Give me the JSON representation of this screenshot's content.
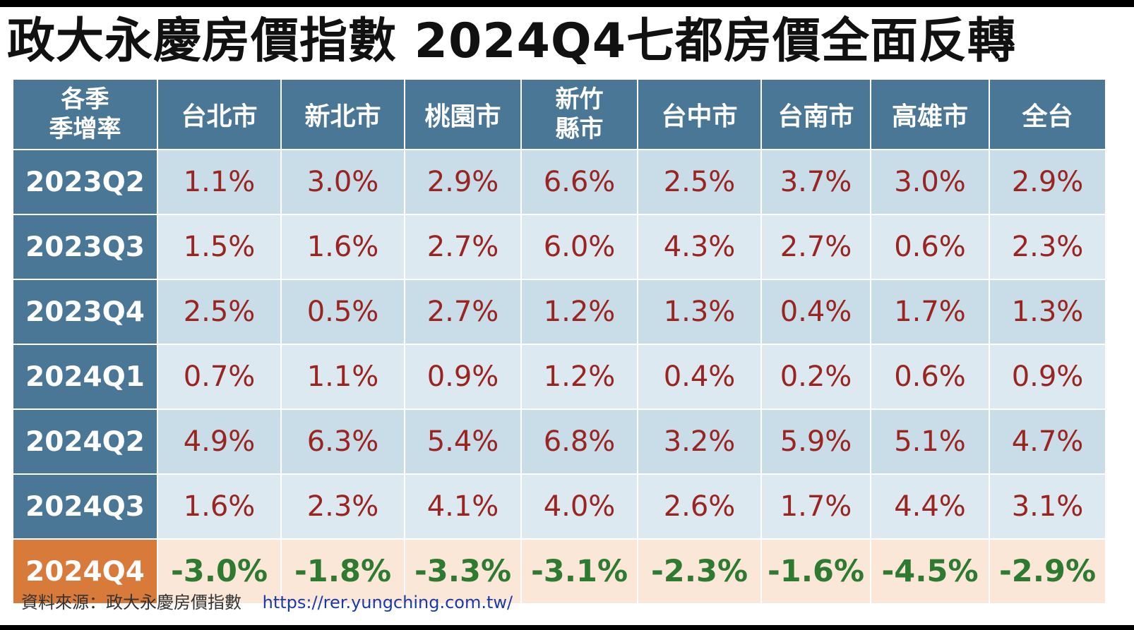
{
  "title": "政大永慶房價指數  2024Q4七都房價全面反轉",
  "chart_data": {
    "type": "table",
    "corner_header": [
      "各季",
      "季增率"
    ],
    "columns": [
      [
        "台北市"
      ],
      [
        "新北市"
      ],
      [
        "桃園市"
      ],
      [
        "新竹",
        "縣市"
      ],
      [
        "台中市"
      ],
      [
        "台南市"
      ],
      [
        "高雄市"
      ],
      [
        "全台"
      ]
    ],
    "rows": [
      {
        "label": "2023Q2",
        "values": [
          "1.1%",
          "3.0%",
          "2.9%",
          "6.6%",
          "2.5%",
          "3.7%",
          "3.0%",
          "2.9%"
        ]
      },
      {
        "label": "2023Q3",
        "values": [
          "1.5%",
          "1.6%",
          "2.7%",
          "6.0%",
          "4.3%",
          "2.7%",
          "0.6%",
          "2.3%"
        ]
      },
      {
        "label": "2023Q4",
        "values": [
          "2.5%",
          "0.5%",
          "2.7%",
          "1.2%",
          "1.3%",
          "0.4%",
          "1.7%",
          "1.3%"
        ]
      },
      {
        "label": "2024Q1",
        "values": [
          "0.7%",
          "1.1%",
          "0.9%",
          "1.2%",
          "0.4%",
          "0.2%",
          "0.6%",
          "0.9%"
        ]
      },
      {
        "label": "2024Q2",
        "values": [
          "4.9%",
          "6.3%",
          "5.4%",
          "6.8%",
          "3.2%",
          "5.9%",
          "5.1%",
          "4.7%"
        ]
      },
      {
        "label": "2024Q3",
        "values": [
          "1.6%",
          "2.3%",
          "4.1%",
          "4.0%",
          "2.6%",
          "1.7%",
          "4.4%",
          "3.1%"
        ]
      },
      {
        "label": "2024Q4",
        "values": [
          "-3.0%",
          "-1.8%",
          "-3.3%",
          "-3.1%",
          "-2.3%",
          "-1.6%",
          "-4.5%",
          "-2.9%"
        ]
      }
    ],
    "colors": {
      "header_bg": "#4a7796",
      "highlight_label_bg": "#d87a3a",
      "positive_text": "#9a2420",
      "negative_text": "#2e7a30",
      "negative_row_bg": "#fae7d8"
    }
  },
  "footer": {
    "source": "資料來源：政大永慶房價指數",
    "url": "https://rer.yungching.com.tw/"
  }
}
